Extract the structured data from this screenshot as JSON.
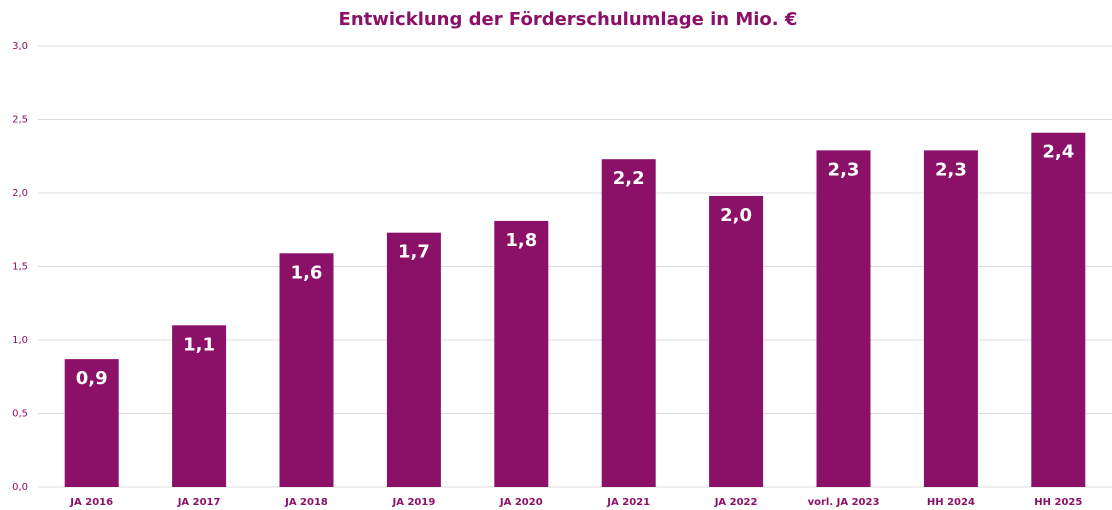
{
  "chart_data": {
    "type": "bar",
    "title": "Entwicklung der Förderschulumlage in Mio. €",
    "categories": [
      "JA 2016",
      "JA 2017",
      "JA 2018",
      "JA 2019",
      "JA 2020",
      "JA 2021",
      "JA 2022",
      "vorl. JA 2023",
      "HH 2024",
      "HH 2025"
    ],
    "values": [
      0.87,
      1.1,
      1.59,
      1.73,
      1.81,
      2.23,
      1.98,
      2.29,
      2.29,
      2.41
    ],
    "value_labels": [
      "0,9",
      "1,1",
      "1,6",
      "1,7",
      "1,8",
      "2,2",
      "2,0",
      "2,3",
      "2,3",
      "2,4"
    ],
    "color": "#8b1168",
    "ylim": [
      0,
      3
    ],
    "yticks": [
      {
        "value": 0,
        "label": "0,0"
      },
      {
        "value": 0.5,
        "label": "0,5"
      },
      {
        "value": 1,
        "label": "1,0"
      },
      {
        "value": 1.5,
        "label": "1,5"
      },
      {
        "value": 2,
        "label": "2,0"
      },
      {
        "value": 2.5,
        "label": "2,5"
      },
      {
        "value": 3,
        "label": "3,0"
      }
    ],
    "grid": true
  }
}
